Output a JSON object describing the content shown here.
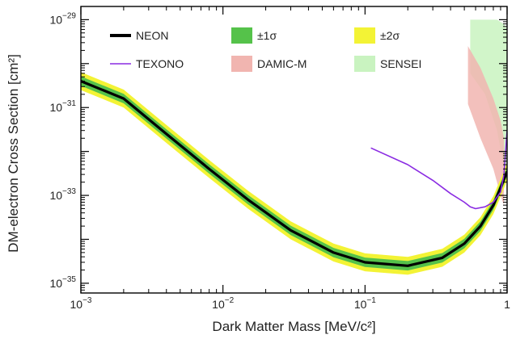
{
  "chart_data": {
    "type": "line",
    "xlabel": "Dark Matter Mass [MeV/c²]",
    "ylabel": "DM-electron Cross Section [cm²]",
    "x_scale": "log",
    "y_scale": "log",
    "xlim": [
      0.001,
      1
    ],
    "ylim": [
      6e-36,
      2e-29
    ],
    "x_ticks": [
      {
        "value": 0.001,
        "base": "10",
        "exp": "−3"
      },
      {
        "value": 0.01,
        "base": "10",
        "exp": "−2"
      },
      {
        "value": 0.1,
        "base": "10",
        "exp": "−1"
      },
      {
        "value": 1,
        "base": "1",
        "exp": ""
      }
    ],
    "y_ticks": [
      {
        "value": 1e-29,
        "base": "10",
        "exp": "−29"
      },
      {
        "value": 1e-31,
        "base": "10",
        "exp": "−31"
      },
      {
        "value": 1e-33,
        "base": "10",
        "exp": "−33"
      },
      {
        "value": 1e-35,
        "base": "10",
        "exp": "−35"
      }
    ],
    "series": [
      {
        "name": "NEON",
        "color": "#000000",
        "x": [
          0.001,
          0.002,
          0.004,
          0.008,
          0.015,
          0.03,
          0.06,
          0.1,
          0.2,
          0.35,
          0.5,
          0.65,
          0.8,
          0.9,
          1.0
        ],
        "y": [
          4e-31,
          1.6e-31,
          2.5e-32,
          4e-33,
          8e-34,
          1.6e-34,
          5e-35,
          3e-35,
          2.5e-35,
          3.8e-35,
          8e-35,
          2e-34,
          6e-34,
          1.5e-33,
          3.5e-33
        ]
      },
      {
        "name": "TEXONO",
        "color": "#8a2be2",
        "x": [
          0.11,
          0.2,
          0.3,
          0.4,
          0.5,
          0.55,
          0.6,
          0.7,
          0.8,
          0.9,
          0.95,
          1.0
        ],
        "y": [
          1.2e-32,
          5e-33,
          2.2e-33,
          1.1e-33,
          7e-34,
          5.5e-34,
          5e-34,
          5.5e-34,
          7e-34,
          1.2e-33,
          3e-33,
          3e-32
        ]
      }
    ],
    "bands": [
      {
        "name": "±1σ",
        "color": "#55c24a",
        "around": "NEON",
        "factor": 1.28
      },
      {
        "name": "±2σ",
        "color": "#f3f335",
        "around": "NEON",
        "factor": 1.6
      }
    ],
    "regions": [
      {
        "name": "DAMIC-M",
        "color": "#f1b5b0",
        "x": [
          0.53,
          0.65,
          0.8,
          0.9,
          0.95,
          0.95,
          0.9,
          0.8,
          0.65,
          0.53
        ],
        "y": [
          2.5e-30,
          8e-31,
          1.6e-31,
          5e-32,
          2e-32,
          6e-34,
          1e-33,
          4e-33,
          2e-32,
          1.2e-31
        ]
      },
      {
        "name": "SENSEI",
        "color": "#c9f3c0",
        "x": [
          0.55,
          0.7,
          0.85,
          0.95,
          1.0,
          1.0,
          0.95,
          0.85,
          0.7,
          0.55
        ],
        "y": [
          1e-29,
          1e-29,
          1e-29,
          8e-30,
          6e-30,
          2e-33,
          4e-33,
          3e-32,
          2e-31,
          6e-31
        ]
      }
    ],
    "legend": {
      "placement": "top",
      "entries": [
        {
          "name": "NEON",
          "kind": "line",
          "color": "#000000"
        },
        {
          "name": "±1σ",
          "kind": "box",
          "color": "#55c24a"
        },
        {
          "name": "±2σ",
          "kind": "box",
          "color": "#f3f335"
        },
        {
          "name": "TEXONO",
          "kind": "line",
          "color": "#8a2be2"
        },
        {
          "name": "DAMIC-M",
          "kind": "box",
          "color": "#f1b5b0"
        },
        {
          "name": "SENSEI",
          "kind": "box",
          "color": "#c9f3c0"
        }
      ]
    },
    "grid": false
  }
}
